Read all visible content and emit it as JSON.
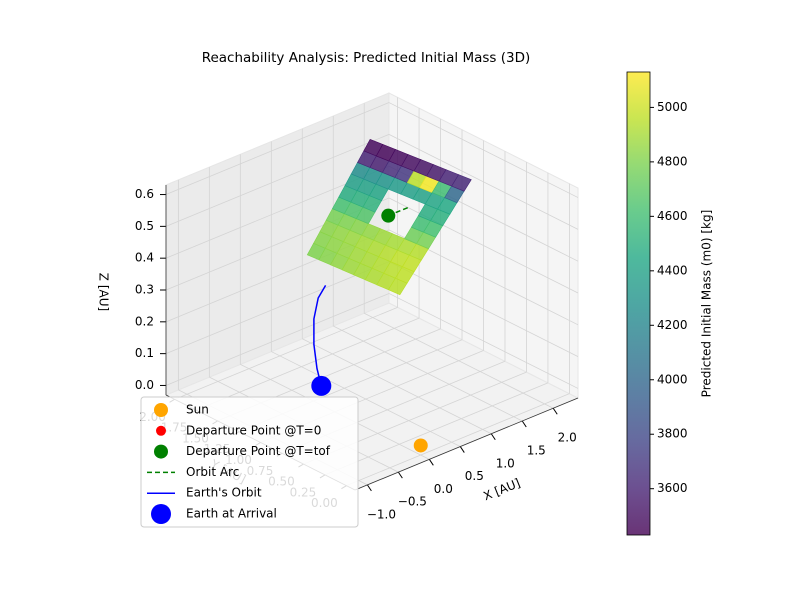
{
  "chart_data": {
    "type": "scatter3d",
    "title": "Reachability Analysis: Predicted Initial Mass (3D)",
    "x_label": "X [AU]",
    "y_label": "Y [AU]",
    "z_label": "Z [AU]",
    "xlim": [
      -1.2,
      2.4
    ],
    "ylim": [
      -0.1,
      2.1
    ],
    "zlim": [
      -0.03,
      0.63
    ],
    "xticks": [
      {
        "value": -1.0,
        "label": "−1.0"
      },
      {
        "value": -0.5,
        "label": "−0.5"
      },
      {
        "value": 0,
        "label": "0.0"
      },
      0.5,
      {
        "value": 1.0,
        "label": "1.0"
      },
      1.5,
      {
        "value": 2.0,
        "label": "2.0"
      }
    ],
    "yticks": [
      {
        "value": 0,
        "label": "0.00"
      },
      0.25,
      {
        "value": 0.5,
        "label": "0.50"
      },
      0.75,
      {
        "value": 1.0,
        "label": "1.00"
      },
      1.25,
      {
        "value": 1.5,
        "label": "1.50"
      },
      1.75,
      {
        "value": 2.0,
        "label": "2.00"
      }
    ],
    "zticks": [
      {
        "value": 0,
        "label": "0.0"
      },
      0.1,
      0.2,
      0.3,
      0.4,
      0.5,
      0.6
    ],
    "grid": true,
    "legend": "lower left",
    "surface": {
      "corners": [
        [
          0.0,
          1.32,
          0.42
        ],
        [
          1.47,
          1.65,
          0.62
        ],
        [
          2.05,
          0.89,
          0.55
        ],
        [
          0.51,
          0.61,
          0.35
        ]
      ],
      "values": [
        [
          4800,
          4820,
          4830,
          4780,
          4620,
          4480,
          4380,
          4250,
          3600,
          3480
        ],
        [
          4820,
          4840,
          4850,
          4800,
          4650,
          4500,
          4400,
          4280,
          3580,
          3460
        ],
        [
          4850,
          4860,
          4870,
          4820,
          4660,
          4520,
          4420,
          4300,
          3650,
          3480
        ],
        [
          4880,
          4890,
          4900,
          4850,
          null,
          null,
          null,
          4350,
          3700,
          3500
        ],
        [
          4900,
          4910,
          4920,
          4880,
          null,
          null,
          null,
          4380,
          4950,
          3520
        ],
        [
          4920,
          4930,
          4940,
          4900,
          null,
          null,
          null,
          4400,
          5100,
          3550
        ],
        [
          4940,
          4950,
          4960,
          4920,
          4750,
          4600,
          4480,
          4420,
          4600,
          3600
        ],
        [
          4950,
          4960,
          4970,
          4940,
          4780,
          4620,
          4500,
          4450,
          4000,
          3620
        ]
      ]
    },
    "colormap": "viridis",
    "clim": [
      3430,
      5130
    ],
    "colorbar_label": "Predicted Initial Mass (m0) [kg]",
    "colorbar_ticks": [
      3600,
      3800,
      4000,
      4200,
      4400,
      4600,
      4800,
      5000
    ],
    "series": [
      {
        "name": "Sun",
        "color": "#ffa500",
        "marker": "o",
        "x": [
          0
        ],
        "y": [
          0
        ],
        "z": [
          0
        ]
      },
      {
        "name": "Departure Point @T=0",
        "color": "#ff0000",
        "marker": "o"
      },
      {
        "name": "Departure Point @T=tof",
        "color": "#008000",
        "marker": "o",
        "x": [
          0.96
        ],
        "y": [
          1.07
        ],
        "z": [
          0.5
        ]
      },
      {
        "name": "Orbit Arc",
        "color": "#008000",
        "marker": "--",
        "x": [
          0.96,
          1.13,
          1.31
        ],
        "y": [
          1.07,
          1.07,
          1.07
        ],
        "z": [
          0.5,
          0.5,
          0.5
        ]
      },
      {
        "name": "Earth's Orbit",
        "color": "#0000ff",
        "marker": "-",
        "x": [
          0.17,
          0.1,
          0.05,
          0.05,
          0.12,
          0.24
        ],
        "y": [
          1.28,
          1.28,
          1.28,
          1.28,
          1.28,
          1.28
        ],
        "z": [
          0,
          0.06,
          0.14,
          0.22,
          0.28,
          0.31
        ]
      },
      {
        "name": "Earth at Arrival",
        "color": "#0000ff",
        "marker": "o",
        "x": [
          0.17
        ],
        "y": [
          1.28
        ],
        "z": [
          0
        ]
      }
    ]
  }
}
